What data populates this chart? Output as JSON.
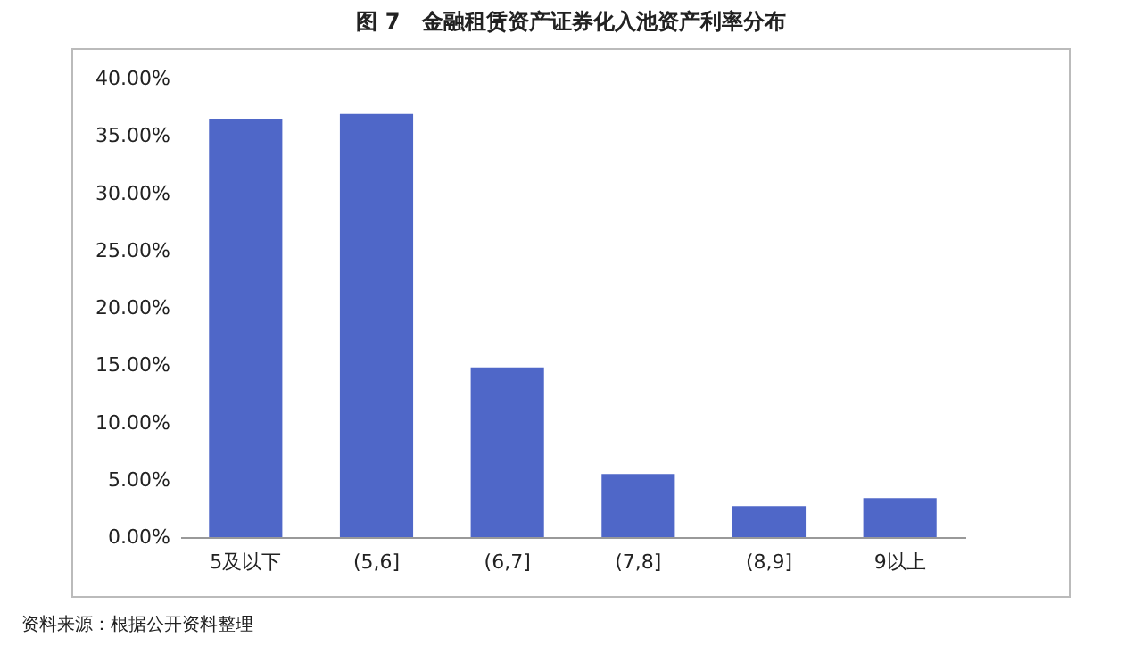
{
  "chart_data": {
    "type": "bar",
    "title": "图 7　金融租赁资产证券化入池资产利率分布",
    "categories": [
      "5及以下",
      "(5,6]",
      "(6,7]",
      "(7,8]",
      "(8,9]",
      "9以上"
    ],
    "values": [
      36.5,
      36.9,
      14.8,
      5.5,
      2.7,
      3.4
    ],
    "color": "#4f67c8",
    "ylim": [
      0,
      40
    ],
    "yticks": [
      {
        "value": 0,
        "label": "0.00%"
      },
      {
        "value": 5,
        "label": "5.00%"
      },
      {
        "value": 10,
        "label": "10.00%"
      },
      {
        "value": 15,
        "label": "15.00%"
      },
      {
        "value": 20,
        "label": "20.00%"
      },
      {
        "value": 25,
        "label": "25.00%"
      },
      {
        "value": 30,
        "label": "30.00%"
      },
      {
        "value": 35,
        "label": "35.00%"
      },
      {
        "value": 40,
        "label": "40.00%"
      }
    ],
    "grid": false,
    "annotations": [
      "资料来源：根据公开资料整理"
    ]
  }
}
